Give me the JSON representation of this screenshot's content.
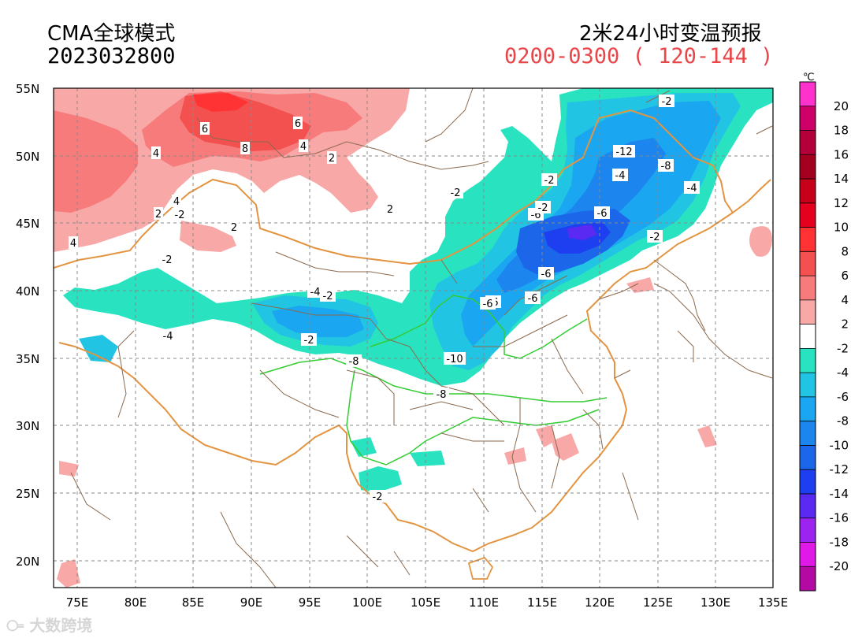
{
  "header": {
    "model": "CMA全球模式",
    "run_time": "2023032800",
    "product": "2米24小时变温预报",
    "valid": "0200-0300 ( 120-144 )"
  },
  "map": {
    "lat_labels": [
      "55N",
      "50N",
      "45N",
      "40N",
      "35N",
      "30N",
      "25N",
      "20N"
    ],
    "lon_labels": [
      "75E",
      "80E",
      "85E",
      "90E",
      "95E",
      "100E",
      "105E",
      "110E",
      "115E",
      "120E",
      "125E",
      "130E",
      "135E"
    ],
    "contour_labels": [
      "6",
      "6",
      "8",
      "4",
      "2",
      "4",
      "4",
      "2",
      "4",
      "2",
      "2",
      "-2",
      "-2",
      "-2",
      "-4",
      "-2",
      "-6",
      "-2",
      "-2",
      "-4",
      "-2",
      "-2",
      "-6",
      "-8",
      "-10",
      "-12",
      "-4",
      "-6",
      "-2",
      "-6",
      "-8",
      "-4",
      "-6",
      "-6",
      "-8",
      "-2"
    ]
  },
  "colorbar": {
    "unit": "℃",
    "tick_labels": [
      "20",
      "18",
      "16",
      "14",
      "12",
      "10",
      "8",
      "6",
      "4",
      "2",
      "-2",
      "-4",
      "-6",
      "-8",
      "-10",
      "-12",
      "-14",
      "-16",
      "-18",
      "-20"
    ],
    "colors": [
      "#ff33cc",
      "#cc0066",
      "#b3003b",
      "#a30020",
      "#c7001a",
      "#e6001f",
      "#ff3333",
      "#f35050",
      "#f77b7b",
      "#f9a8a8",
      "#ffffff",
      "#29e3c0",
      "#21c5e3",
      "#1aa6f0",
      "#1c86ee",
      "#1c67e9",
      "#1d3ff0",
      "#5a29f2",
      "#9c23f0",
      "#e019e6",
      "#b30aa3"
    ]
  },
  "watermark": "大数跨境"
}
